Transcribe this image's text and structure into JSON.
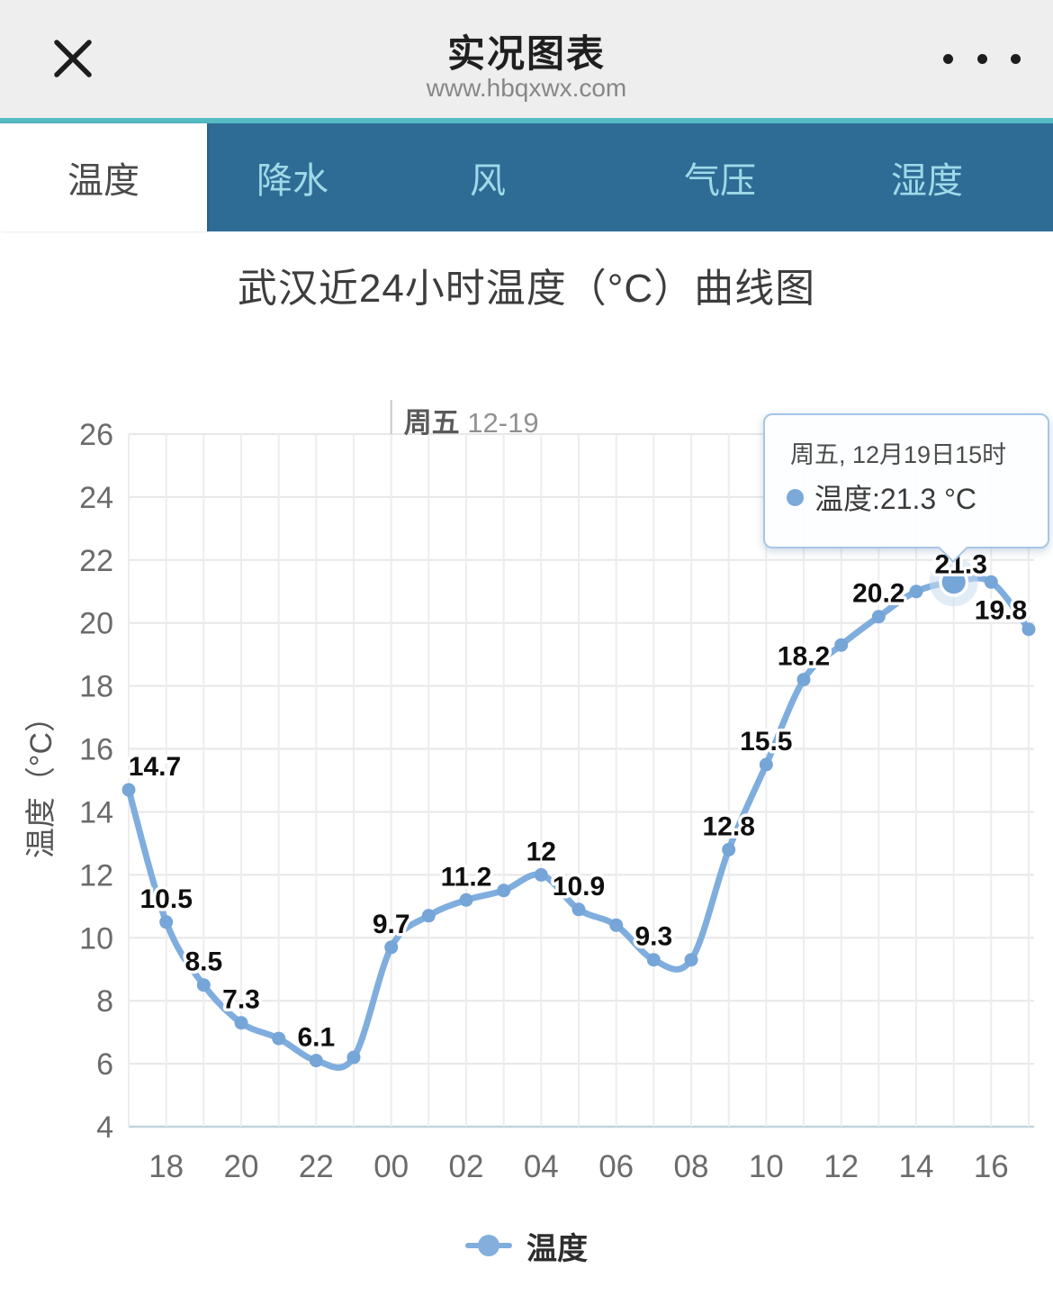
{
  "header": {
    "title": "实况图表",
    "subtitle": "www.hbqxwx.com",
    "close_icon": "x-close",
    "menu_icon": "three-dots"
  },
  "tabs": {
    "active": "温度",
    "items": [
      {
        "label": "温度"
      },
      {
        "label": "降水"
      },
      {
        "label": "风"
      },
      {
        "label": "气压"
      },
      {
        "label": "湿度"
      }
    ]
  },
  "chart_title": "武汉近24小时温度（°C）曲线图",
  "chart_data": {
    "type": "line",
    "title": "武汉近24小时温度（°C）曲线图",
    "xlabel": "",
    "ylabel": "温度（°C）",
    "ylim": [
      4,
      26
    ],
    "y_ticks": [
      4,
      6,
      8,
      10,
      12,
      14,
      16,
      18,
      20,
      22,
      24,
      26
    ],
    "x": [
      "17",
      "18",
      "19",
      "20",
      "21",
      "22",
      "23",
      "00",
      "01",
      "02",
      "03",
      "04",
      "05",
      "06",
      "07",
      "08",
      "09",
      "10",
      "11",
      "12",
      "13",
      "14",
      "15",
      "16",
      "17"
    ],
    "x_tick_labels": [
      "18",
      "20",
      "22",
      "00",
      "02",
      "04",
      "06",
      "08",
      "10",
      "12",
      "14",
      "16"
    ],
    "grid": true,
    "legend_position": "bottom",
    "series": [
      {
        "name": "温度",
        "color": "#7fadde",
        "point_color": "#76a5d7",
        "values": [
          14.7,
          10.5,
          8.5,
          7.3,
          6.8,
          6.1,
          6.2,
          9.7,
          10.7,
          11.2,
          11.5,
          12,
          10.9,
          10.4,
          9.3,
          9.3,
          12.8,
          15.5,
          18.2,
          19.3,
          20.2,
          21.0,
          21.3,
          21.3,
          19.8
        ],
        "point_labels": [
          "14.7",
          "10.5",
          "8.5",
          "7.3",
          null,
          "6.1",
          null,
          "9.7",
          null,
          "11.2",
          null,
          "12",
          "10.9",
          null,
          "9.3",
          null,
          "12.8",
          "15.5",
          "18.2",
          null,
          "20.2",
          null,
          "21.3",
          null,
          "19.8"
        ]
      }
    ],
    "day_marker": {
      "category": "00",
      "weekday": "周五",
      "date": "12-19"
    },
    "highlight": {
      "index": 22,
      "value": 21.3
    }
  },
  "tooltip": {
    "title": "周五, 12月19日15时",
    "value_line": "温度:21.3 °C"
  },
  "legend": {
    "label": "温度"
  }
}
